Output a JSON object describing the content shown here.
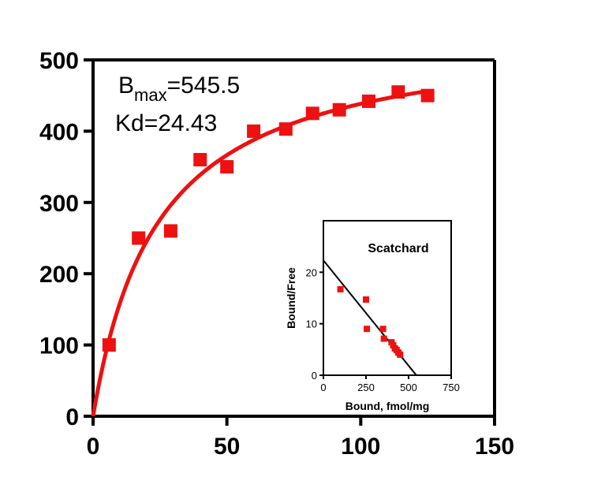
{
  "chart_data": [
    {
      "type": "scatter",
      "title": "",
      "xlabel": "",
      "ylabel": "",
      "xlim": [
        0,
        150
      ],
      "ylim": [
        0,
        500
      ],
      "xticks": [
        "0",
        "50",
        "100",
        "150"
      ],
      "yticks": [
        "0",
        "100",
        "200",
        "300",
        "400",
        "500"
      ],
      "grid": false,
      "legend": "none",
      "colors": {
        "series": "#ee1111",
        "axis": "#000000"
      },
      "annotations": {
        "bmax_label": "B",
        "bmax_sub": "max",
        "bmax_value": "=545.5",
        "kd_text": "Kd=24.43"
      },
      "fit": {
        "model": "one-site binding",
        "bmax": 545.5,
        "kd": 24.43
      },
      "series": [
        {
          "x": [
            6,
            17,
            29,
            40,
            50,
            60,
            72,
            82,
            92,
            103,
            114,
            125
          ],
          "y": [
            100,
            250,
            260,
            360,
            350,
            400,
            403,
            425,
            430,
            442,
            455,
            450
          ]
        }
      ]
    },
    {
      "type": "scatter",
      "title": "Scatchard",
      "xlabel": "Bound, fmol/mg",
      "ylabel": "Bound/Free",
      "xlim": [
        0,
        750
      ],
      "ylim": [
        0,
        30
      ],
      "xticks": [
        "0",
        "250",
        "500",
        "750"
      ],
      "yticks": [
        "0",
        "10",
        "20"
      ],
      "grid": false,
      "legend": "none",
      "colors": {
        "series": "#ee1111",
        "axis": "#000000"
      },
      "fit_line": {
        "x": [
          0,
          545.5
        ],
        "y": [
          22.3,
          0
        ]
      },
      "series": [
        {
          "x": [
            100,
            250,
            255,
            350,
            355,
            400,
            410,
            420,
            430,
            440,
            450
          ],
          "y": [
            16.7,
            14.7,
            9.0,
            9.0,
            7.1,
            6.4,
            5.8,
            5.2,
            4.9,
            4.4,
            4.0
          ]
        }
      ]
    }
  ]
}
